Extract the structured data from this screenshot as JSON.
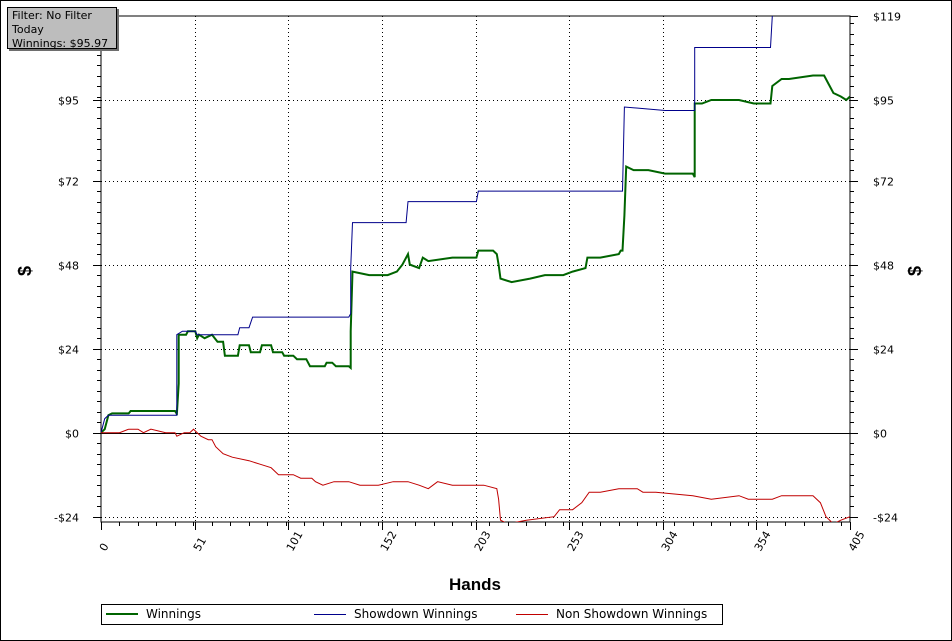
{
  "filter_box": {
    "line1": "Filter: No Filter",
    "line2": "Today",
    "line3": "Winnings: $95.97"
  },
  "chart_data": {
    "type": "line",
    "xlabel": "Hands",
    "ylabel_left": "$",
    "ylabel_right": "$",
    "xlim": [
      0,
      405
    ],
    "ylim": [
      -25.5,
      119
    ],
    "x_ticks": [
      0,
      51,
      101,
      152,
      203,
      253,
      304,
      354,
      405
    ],
    "x_tick_labels": [
      "0",
      "51",
      "101",
      "152",
      "203",
      "253",
      "304",
      "354",
      "405"
    ],
    "y_ticks": [
      -24,
      0,
      24,
      48,
      72,
      95
    ],
    "y_tick_labels_left": [
      "-$24",
      "$0",
      "$24",
      "$48",
      "$72",
      "$95"
    ],
    "y_tick_labels_right": [
      "-$24",
      "$0",
      "$24",
      "$48",
      "$72",
      "$95",
      "$119"
    ],
    "y_tick_right_values": [
      -24,
      0,
      24,
      48,
      72,
      95,
      119
    ],
    "grid": true,
    "legend_position": "bottom",
    "series": [
      {
        "name": "Winnings",
        "color": "#006400",
        "points": [
          [
            0,
            0
          ],
          [
            2,
            1
          ],
          [
            4,
            5
          ],
          [
            6,
            5.5
          ],
          [
            15,
            5.5
          ],
          [
            16,
            6.2
          ],
          [
            40,
            6.2
          ],
          [
            41,
            5.4
          ],
          [
            41,
            5
          ],
          [
            42,
            14
          ],
          [
            42,
            28
          ],
          [
            46,
            28
          ],
          [
            47,
            29
          ],
          [
            51,
            29
          ],
          [
            52,
            27
          ],
          [
            53,
            28
          ],
          [
            56,
            27
          ],
          [
            60,
            28
          ],
          [
            63,
            26
          ],
          [
            66,
            26
          ],
          [
            67,
            22
          ],
          [
            74,
            22
          ],
          [
            75,
            25
          ],
          [
            80,
            25
          ],
          [
            81,
            23
          ],
          [
            86,
            23
          ],
          [
            87,
            25
          ],
          [
            92,
            25
          ],
          [
            93,
            23
          ],
          [
            98,
            23
          ],
          [
            99,
            22
          ],
          [
            104,
            22
          ],
          [
            106,
            21
          ],
          [
            111,
            21
          ],
          [
            113,
            19
          ],
          [
            121,
            19
          ],
          [
            122,
            20
          ],
          [
            125,
            20
          ],
          [
            127,
            19
          ],
          [
            134,
            19
          ],
          [
            135,
            18.5
          ],
          [
            135,
            29
          ],
          [
            136,
            46
          ],
          [
            145,
            45
          ],
          [
            155,
            45
          ],
          [
            160,
            46
          ],
          [
            163,
            48
          ],
          [
            166,
            51
          ],
          [
            167,
            48
          ],
          [
            172,
            47
          ],
          [
            174,
            50
          ],
          [
            177,
            49
          ],
          [
            190,
            50
          ],
          [
            203,
            50
          ],
          [
            204,
            52
          ],
          [
            212,
            52
          ],
          [
            214,
            51
          ],
          [
            215,
            48
          ],
          [
            216,
            44
          ],
          [
            222,
            43
          ],
          [
            232,
            44
          ],
          [
            240,
            45
          ],
          [
            250,
            45
          ],
          [
            255,
            46
          ],
          [
            262,
            47
          ],
          [
            263,
            50
          ],
          [
            270,
            50
          ],
          [
            280,
            51
          ],
          [
            281,
            52
          ],
          [
            282,
            52
          ],
          [
            283,
            62
          ],
          [
            284,
            76
          ],
          [
            288,
            75
          ],
          [
            296,
            75
          ],
          [
            305,
            74
          ],
          [
            320,
            74
          ],
          [
            321,
            73
          ],
          [
            321,
            94
          ],
          [
            325,
            94
          ],
          [
            330,
            95
          ],
          [
            345,
            95
          ],
          [
            353,
            94
          ],
          [
            362,
            94
          ],
          [
            363,
            99
          ],
          [
            368,
            101
          ],
          [
            372,
            101
          ],
          [
            385,
            102
          ],
          [
            391,
            102
          ],
          [
            393,
            100
          ],
          [
            396,
            97
          ],
          [
            400,
            96
          ],
          [
            403,
            95
          ],
          [
            405,
            96
          ]
        ]
      },
      {
        "name": "Showdown Winnings",
        "color": "#00008b",
        "points": [
          [
            0,
            0
          ],
          [
            2,
            4
          ],
          [
            4,
            5
          ],
          [
            40,
            5
          ],
          [
            41,
            5
          ],
          [
            41,
            28
          ],
          [
            44,
            29
          ],
          [
            51,
            29
          ],
          [
            52,
            28
          ],
          [
            74,
            28
          ],
          [
            75,
            30
          ],
          [
            80,
            30
          ],
          [
            82,
            33
          ],
          [
            134,
            33
          ],
          [
            135,
            34
          ],
          [
            135,
            47
          ],
          [
            136,
            60
          ],
          [
            165,
            60
          ],
          [
            166,
            66
          ],
          [
            203,
            66
          ],
          [
            204,
            69
          ],
          [
            282,
            69
          ],
          [
            283,
            93
          ],
          [
            305,
            92
          ],
          [
            321,
            92
          ],
          [
            321,
            110
          ],
          [
            362,
            110
          ],
          [
            363,
            119
          ],
          [
            364,
            122
          ]
        ]
      },
      {
        "name": "Non Showdown Winnings",
        "color": "#c00000",
        "points": [
          [
            0,
            0
          ],
          [
            10,
            0
          ],
          [
            15,
            1
          ],
          [
            20,
            1
          ],
          [
            23,
            0
          ],
          [
            27,
            1
          ],
          [
            35,
            0
          ],
          [
            40,
            0
          ],
          [
            41,
            -1
          ],
          [
            45,
            0
          ],
          [
            48,
            0
          ],
          [
            50,
            1
          ],
          [
            54,
            -1
          ],
          [
            58,
            -2
          ],
          [
            60,
            -2
          ],
          [
            62,
            -4
          ],
          [
            66,
            -6
          ],
          [
            71,
            -7
          ],
          [
            80,
            -8
          ],
          [
            86,
            -9
          ],
          [
            92,
            -10
          ],
          [
            96,
            -12
          ],
          [
            104,
            -12
          ],
          [
            108,
            -13
          ],
          [
            114,
            -13
          ],
          [
            116,
            -14
          ],
          [
            120,
            -15
          ],
          [
            126,
            -14
          ],
          [
            134,
            -14
          ],
          [
            140,
            -15
          ],
          [
            150,
            -15
          ],
          [
            158,
            -14
          ],
          [
            166,
            -14
          ],
          [
            172,
            -15
          ],
          [
            177,
            -16
          ],
          [
            182,
            -14
          ],
          [
            190,
            -15
          ],
          [
            200,
            -15
          ],
          [
            207,
            -15
          ],
          [
            214,
            -16
          ],
          [
            215,
            -19
          ],
          [
            216,
            -25
          ],
          [
            220,
            -26
          ],
          [
            230,
            -25
          ],
          [
            245,
            -24
          ],
          [
            248,
            -22
          ],
          [
            255,
            -22
          ],
          [
            260,
            -20
          ],
          [
            264,
            -17
          ],
          [
            270,
            -17
          ],
          [
            280,
            -16
          ],
          [
            290,
            -16
          ],
          [
            293,
            -17
          ],
          [
            300,
            -17
          ],
          [
            320,
            -18
          ],
          [
            330,
            -19
          ],
          [
            345,
            -18
          ],
          [
            350,
            -19
          ],
          [
            363,
            -19
          ],
          [
            368,
            -18
          ],
          [
            375,
            -18
          ],
          [
            385,
            -18
          ],
          [
            389,
            -20
          ],
          [
            392,
            -24
          ],
          [
            396,
            -26
          ],
          [
            400,
            -25
          ],
          [
            405,
            -24
          ]
        ]
      }
    ]
  }
}
